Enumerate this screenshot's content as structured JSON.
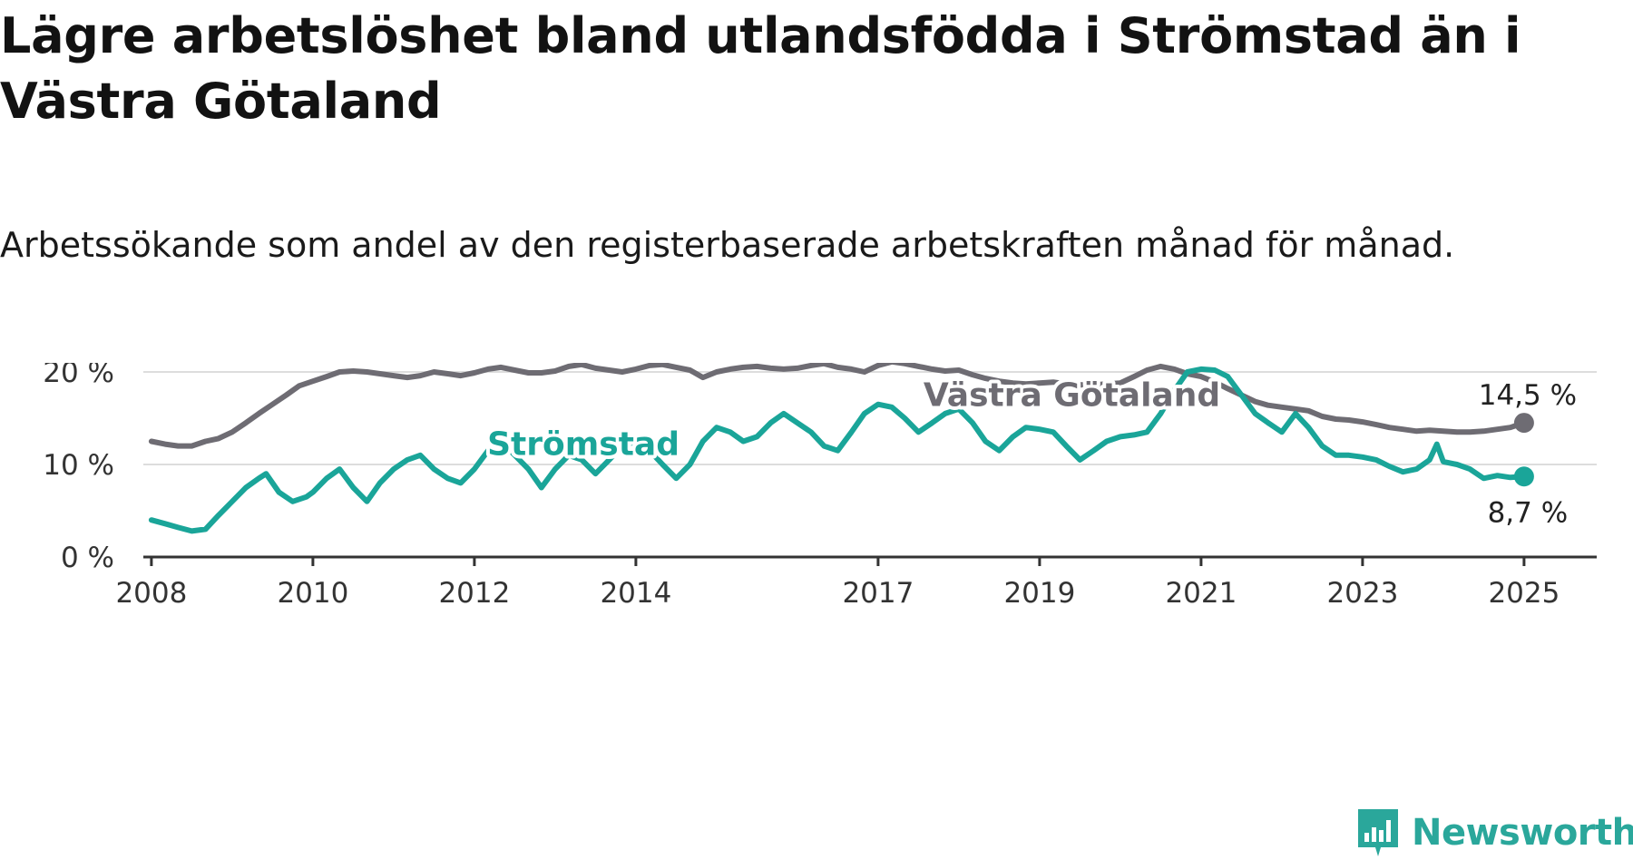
{
  "title": "Lägre arbetslöshet bland utlandsfödda i Strömstad än i Västra Götaland",
  "subtitle": "Arbetssökande som andel av den registerbaserade arbetskraften månad för månad.",
  "brand": "Newsworthy",
  "chart_data": {
    "type": "line",
    "xlim": [
      2007.9,
      2025.9
    ],
    "ylim": [
      0,
      20
    ],
    "grid": true,
    "y_ticks": [
      {
        "value": 0,
        "label": "0 %"
      },
      {
        "value": 10,
        "label": "10 %"
      },
      {
        "value": 20,
        "label": "20 %"
      }
    ],
    "x_ticks": [
      {
        "value": 2008.0,
        "label": "2008"
      },
      {
        "value": 2010.0,
        "label": "2010"
      },
      {
        "value": 2012.0,
        "label": "2012"
      },
      {
        "value": 2014.0,
        "label": "2014"
      },
      {
        "value": 2017.0,
        "label": "2017"
      },
      {
        "value": 2019.0,
        "label": "2019"
      },
      {
        "value": 2021.0,
        "label": "2021"
      },
      {
        "value": 2023.0,
        "label": "2023"
      },
      {
        "value": 2025.0,
        "label": "2025"
      }
    ],
    "series": [
      {
        "name": "Västra Götaland",
        "color": "#6e6c73",
        "end_label": "14,5 %",
        "points": [
          [
            2008.0,
            12.5
          ],
          [
            2008.17,
            12.2
          ],
          [
            2008.33,
            12.0
          ],
          [
            2008.5,
            12.0
          ],
          [
            2008.67,
            12.5
          ],
          [
            2008.83,
            12.8
          ],
          [
            2009.0,
            13.5
          ],
          [
            2009.17,
            14.5
          ],
          [
            2009.33,
            15.5
          ],
          [
            2009.5,
            16.5
          ],
          [
            2009.67,
            17.5
          ],
          [
            2009.83,
            18.5
          ],
          [
            2010.0,
            19.0
          ],
          [
            2010.17,
            19.5
          ],
          [
            2010.33,
            20.0
          ],
          [
            2010.5,
            20.1
          ],
          [
            2010.67,
            20.0
          ],
          [
            2010.83,
            19.8
          ],
          [
            2011.0,
            19.6
          ],
          [
            2011.17,
            19.4
          ],
          [
            2011.33,
            19.6
          ],
          [
            2011.5,
            20.0
          ],
          [
            2011.67,
            19.8
          ],
          [
            2011.83,
            19.6
          ],
          [
            2012.0,
            19.9
          ],
          [
            2012.17,
            20.3
          ],
          [
            2012.33,
            20.5
          ],
          [
            2012.5,
            20.2
          ],
          [
            2012.67,
            19.9
          ],
          [
            2012.83,
            19.9
          ],
          [
            2013.0,
            20.1
          ],
          [
            2013.17,
            20.6
          ],
          [
            2013.33,
            20.8
          ],
          [
            2013.5,
            20.4
          ],
          [
            2013.67,
            20.2
          ],
          [
            2013.83,
            20.0
          ],
          [
            2014.0,
            20.3
          ],
          [
            2014.17,
            20.7
          ],
          [
            2014.33,
            20.8
          ],
          [
            2014.5,
            20.5
          ],
          [
            2014.67,
            20.2
          ],
          [
            2014.83,
            19.4
          ],
          [
            2015.0,
            20.0
          ],
          [
            2015.17,
            20.3
          ],
          [
            2015.33,
            20.5
          ],
          [
            2015.5,
            20.6
          ],
          [
            2015.67,
            20.4
          ],
          [
            2015.83,
            20.3
          ],
          [
            2016.0,
            20.4
          ],
          [
            2016.17,
            20.7
          ],
          [
            2016.33,
            20.9
          ],
          [
            2016.5,
            20.5
          ],
          [
            2016.67,
            20.3
          ],
          [
            2016.83,
            20.0
          ],
          [
            2017.0,
            20.7
          ],
          [
            2017.17,
            21.1
          ],
          [
            2017.33,
            20.9
          ],
          [
            2017.5,
            20.6
          ],
          [
            2017.67,
            20.3
          ],
          [
            2017.83,
            20.1
          ],
          [
            2018.0,
            20.2
          ],
          [
            2018.17,
            19.7
          ],
          [
            2018.33,
            19.3
          ],
          [
            2018.5,
            19.0
          ],
          [
            2018.67,
            18.8
          ],
          [
            2018.83,
            18.7
          ],
          [
            2019.0,
            18.8
          ],
          [
            2019.17,
            18.9
          ],
          [
            2019.33,
            18.7
          ],
          [
            2019.5,
            18.6
          ],
          [
            2019.67,
            18.6
          ],
          [
            2019.83,
            18.7
          ],
          [
            2020.0,
            18.8
          ],
          [
            2020.17,
            19.5
          ],
          [
            2020.33,
            20.2
          ],
          [
            2020.5,
            20.6
          ],
          [
            2020.67,
            20.3
          ],
          [
            2020.83,
            19.8
          ],
          [
            2021.0,
            19.5
          ],
          [
            2021.17,
            18.9
          ],
          [
            2021.33,
            18.2
          ],
          [
            2021.5,
            17.5
          ],
          [
            2021.67,
            16.8
          ],
          [
            2021.83,
            16.4
          ],
          [
            2022.0,
            16.2
          ],
          [
            2022.17,
            16.0
          ],
          [
            2022.33,
            15.8
          ],
          [
            2022.5,
            15.2
          ],
          [
            2022.67,
            14.9
          ],
          [
            2022.83,
            14.8
          ],
          [
            2023.0,
            14.6
          ],
          [
            2023.17,
            14.3
          ],
          [
            2023.33,
            14.0
          ],
          [
            2023.5,
            13.8
          ],
          [
            2023.67,
            13.6
          ],
          [
            2023.83,
            13.7
          ],
          [
            2024.0,
            13.6
          ],
          [
            2024.17,
            13.5
          ],
          [
            2024.33,
            13.5
          ],
          [
            2024.5,
            13.6
          ],
          [
            2024.67,
            13.8
          ],
          [
            2024.83,
            14.0
          ],
          [
            2025.0,
            14.5
          ]
        ]
      },
      {
        "name": "Strömstad",
        "color": "#1aa599",
        "end_label": "8,7 %",
        "points": [
          [
            2008.0,
            4.0
          ],
          [
            2008.17,
            3.6
          ],
          [
            2008.33,
            3.2
          ],
          [
            2008.5,
            2.8
          ],
          [
            2008.67,
            3.0
          ],
          [
            2008.83,
            4.5
          ],
          [
            2009.0,
            6.0
          ],
          [
            2009.17,
            7.5
          ],
          [
            2009.33,
            8.5
          ],
          [
            2009.42,
            9.0
          ],
          [
            2009.58,
            7.0
          ],
          [
            2009.75,
            6.0
          ],
          [
            2009.92,
            6.5
          ],
          [
            2010.0,
            7.0
          ],
          [
            2010.17,
            8.5
          ],
          [
            2010.33,
            9.5
          ],
          [
            2010.5,
            7.5
          ],
          [
            2010.67,
            6.0
          ],
          [
            2010.83,
            8.0
          ],
          [
            2011.0,
            9.5
          ],
          [
            2011.17,
            10.5
          ],
          [
            2011.33,
            11.0
          ],
          [
            2011.5,
            9.5
          ],
          [
            2011.67,
            8.5
          ],
          [
            2011.83,
            8.0
          ],
          [
            2012.0,
            9.5
          ],
          [
            2012.17,
            11.5
          ],
          [
            2012.33,
            12.5
          ],
          [
            2012.5,
            11.0
          ],
          [
            2012.67,
            9.5
          ],
          [
            2012.83,
            7.5
          ],
          [
            2013.0,
            9.5
          ],
          [
            2013.17,
            11.0
          ],
          [
            2013.33,
            10.5
          ],
          [
            2013.5,
            9.0
          ],
          [
            2013.67,
            10.5
          ],
          [
            2013.83,
            12.0
          ],
          [
            2014.0,
            12.5
          ],
          [
            2014.17,
            11.5
          ],
          [
            2014.33,
            10.0
          ],
          [
            2014.5,
            8.5
          ],
          [
            2014.67,
            10.0
          ],
          [
            2014.83,
            12.5
          ],
          [
            2015.0,
            14.0
          ],
          [
            2015.17,
            13.5
          ],
          [
            2015.33,
            12.5
          ],
          [
            2015.5,
            13.0
          ],
          [
            2015.67,
            14.5
          ],
          [
            2015.83,
            15.5
          ],
          [
            2016.0,
            14.5
          ],
          [
            2016.17,
            13.5
          ],
          [
            2016.33,
            12.0
          ],
          [
            2016.5,
            11.5
          ],
          [
            2016.67,
            13.5
          ],
          [
            2016.83,
            15.5
          ],
          [
            2017.0,
            16.5
          ],
          [
            2017.17,
            16.2
          ],
          [
            2017.33,
            15.0
          ],
          [
            2017.5,
            13.5
          ],
          [
            2017.67,
            14.5
          ],
          [
            2017.83,
            15.5
          ],
          [
            2018.0,
            16.0
          ],
          [
            2018.17,
            14.5
          ],
          [
            2018.33,
            12.5
          ],
          [
            2018.5,
            11.5
          ],
          [
            2018.67,
            13.0
          ],
          [
            2018.83,
            14.0
          ],
          [
            2019.0,
            13.8
          ],
          [
            2019.17,
            13.5
          ],
          [
            2019.33,
            12.0
          ],
          [
            2019.5,
            10.5
          ],
          [
            2019.67,
            11.5
          ],
          [
            2019.83,
            12.5
          ],
          [
            2020.0,
            13.0
          ],
          [
            2020.17,
            13.2
          ],
          [
            2020.33,
            13.5
          ],
          [
            2020.5,
            15.5
          ],
          [
            2020.67,
            18.0
          ],
          [
            2020.83,
            20.0
          ],
          [
            2021.0,
            20.3
          ],
          [
            2021.17,
            20.2
          ],
          [
            2021.33,
            19.5
          ],
          [
            2021.5,
            17.5
          ],
          [
            2021.67,
            15.5
          ],
          [
            2021.83,
            14.5
          ],
          [
            2022.0,
            13.5
          ],
          [
            2022.17,
            15.5
          ],
          [
            2022.33,
            14.0
          ],
          [
            2022.5,
            12.0
          ],
          [
            2022.67,
            11.0
          ],
          [
            2022.83,
            11.0
          ],
          [
            2023.0,
            10.8
          ],
          [
            2023.17,
            10.5
          ],
          [
            2023.33,
            9.8
          ],
          [
            2023.5,
            9.2
          ],
          [
            2023.67,
            9.5
          ],
          [
            2023.83,
            10.5
          ],
          [
            2023.92,
            12.2
          ],
          [
            2024.0,
            10.3
          ],
          [
            2024.17,
            10.0
          ],
          [
            2024.33,
            9.5
          ],
          [
            2024.5,
            8.5
          ],
          [
            2024.67,
            8.8
          ],
          [
            2024.83,
            8.6
          ],
          [
            2025.0,
            8.7
          ]
        ]
      }
    ],
    "series_labels": [
      {
        "series": "Västra Götaland",
        "text": "Västra Götaland",
        "x": 2019.4,
        "y": 17.5
      },
      {
        "series": "Strömstad",
        "text": "Strömstad",
        "x": 2013.35,
        "y": 12.2
      }
    ]
  }
}
